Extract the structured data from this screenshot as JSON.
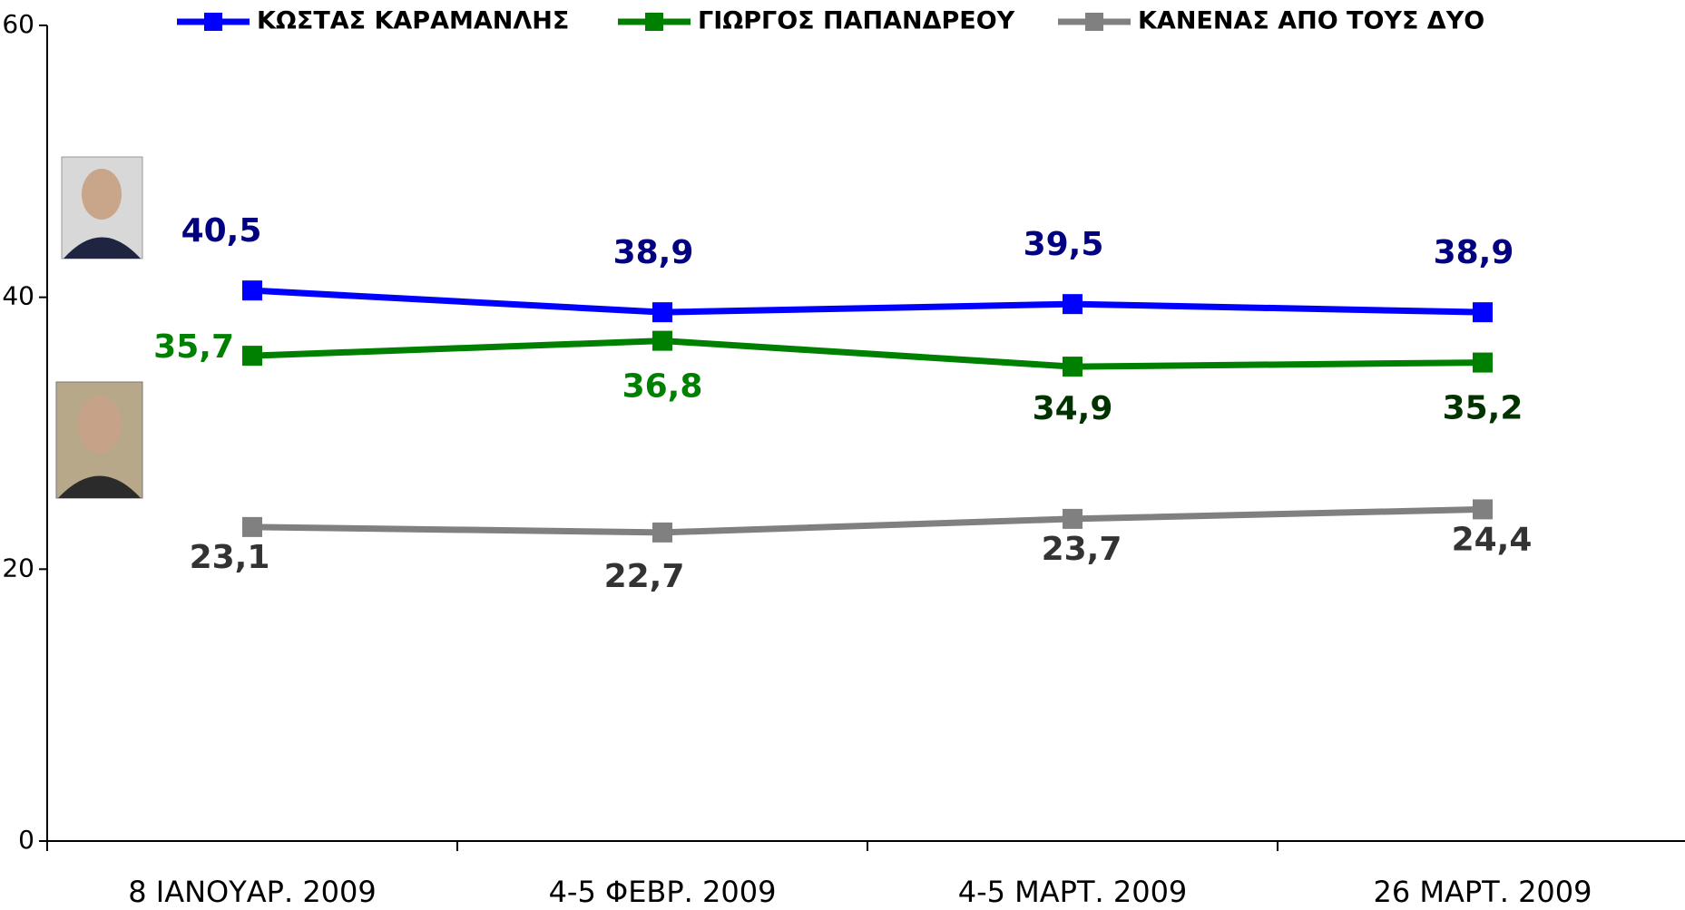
{
  "chart_data": {
    "type": "line",
    "categories": [
      "8 ΙΑΝΟΥΑΡ. 2009",
      "4-5 ΦΕΒΡ. 2009",
      "4-5 ΜΑΡΤ. 2009",
      "26 ΜΑΡΤ. 2009"
    ],
    "series": [
      {
        "name": "ΚΩΣΤΑΣ ΚΑΡΑΜΑΝΛΗΣ",
        "color": "#0000ff",
        "values": [
          40.5,
          38.9,
          39.5,
          38.9
        ],
        "value_labels": [
          "40,5",
          "38,9",
          "39,5",
          "38,9"
        ],
        "label_colors": [
          "#000080",
          "#000080",
          "#000080",
          "#000080"
        ]
      },
      {
        "name": "ΓΙΩΡΓΟΣ ΠΑΠΑΝΔΡΕΟΥ",
        "color": "#008000",
        "values": [
          35.7,
          36.8,
          34.9,
          35.2
        ],
        "value_labels": [
          "35,7",
          "36,8",
          "34,9",
          "35,2"
        ],
        "label_colors": [
          "#008000",
          "#008000",
          "#003300",
          "#003300"
        ]
      },
      {
        "name": "ΚΑΝΕΝΑΣ ΑΠΟ ΤΟΥΣ ΔΥΟ",
        "color": "#808080",
        "values": [
          23.1,
          22.7,
          23.7,
          24.4
        ],
        "value_labels": [
          "23,1",
          "22,7",
          "23,7",
          "24,4"
        ],
        "label_colors": [
          "#333333",
          "#333333",
          "#333333",
          "#333333"
        ]
      }
    ],
    "ylim": [
      0,
      60
    ],
    "yticks": [
      0,
      20,
      40,
      60
    ],
    "grid": false
  }
}
